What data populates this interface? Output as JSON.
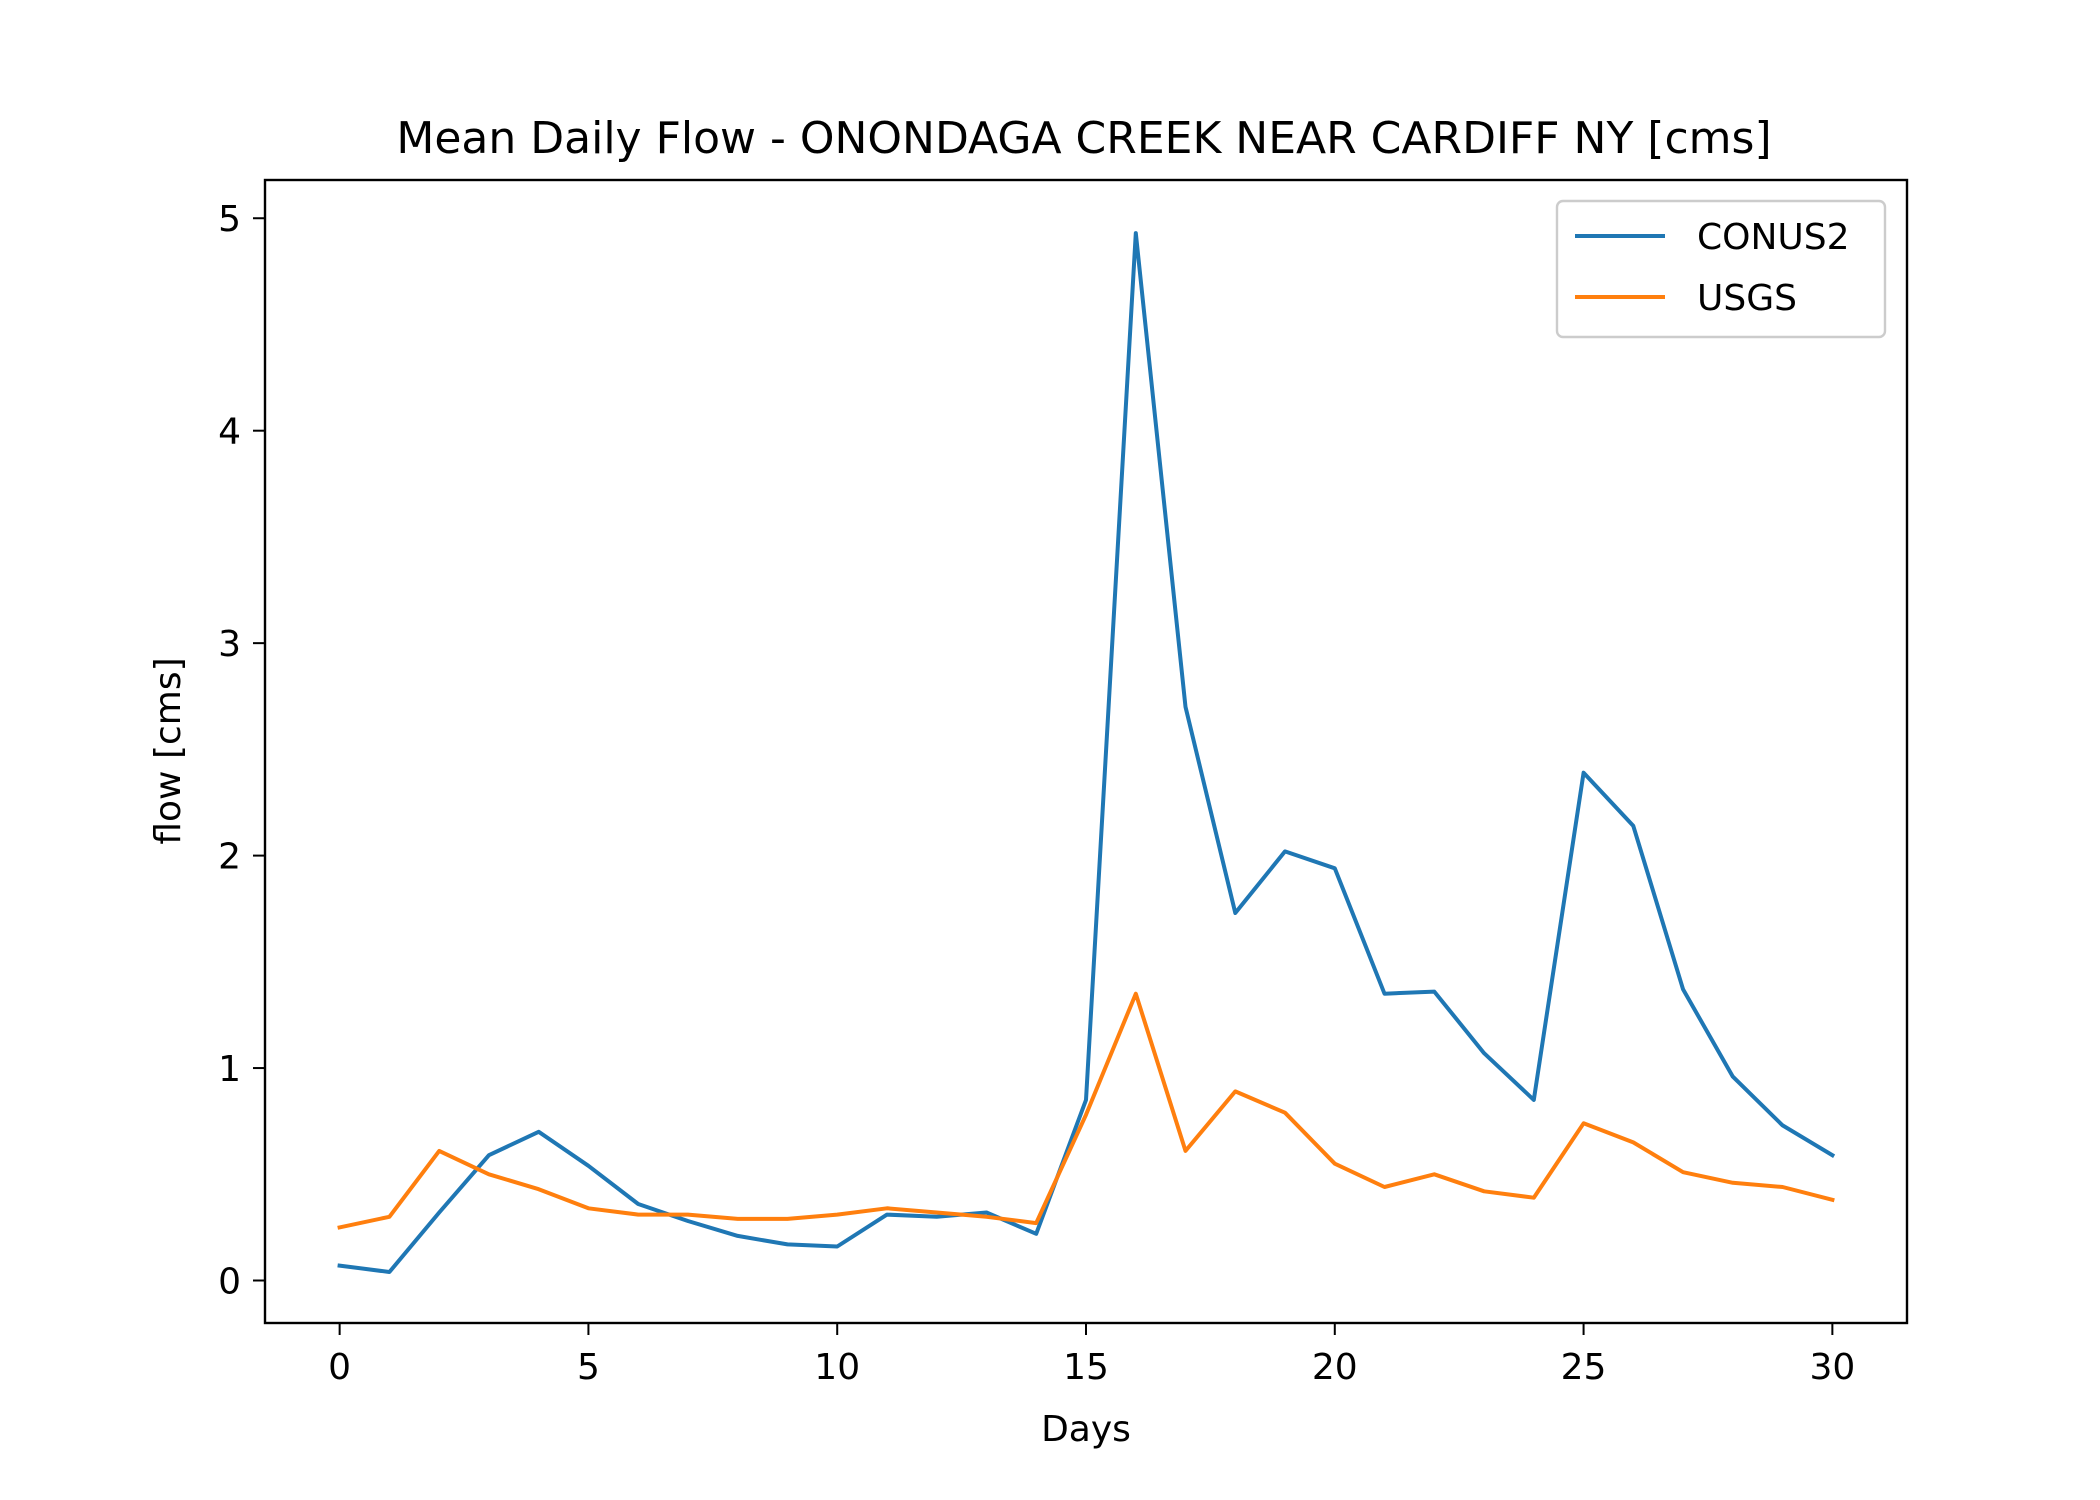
{
  "chart_data": {
    "type": "line",
    "title": "Mean Daily Flow - ONONDAGA CREEK NEAR CARDIFF NY [cms]",
    "xlabel": "Days",
    "ylabel": "flow [cms]",
    "xlim": [
      -1.5,
      31.5
    ],
    "ylim": [
      -0.2,
      5.18
    ],
    "xticks": [
      0,
      5,
      10,
      15,
      20,
      25,
      30
    ],
    "yticks": [
      0,
      1,
      2,
      3,
      4,
      5
    ],
    "grid": false,
    "legend": "top-right",
    "x": [
      0,
      1,
      2,
      3,
      4,
      5,
      6,
      7,
      8,
      9,
      10,
      11,
      12,
      13,
      14,
      15,
      16,
      17,
      18,
      19,
      20,
      21,
      22,
      23,
      24,
      25,
      26,
      27,
      28,
      29,
      30
    ],
    "series": [
      {
        "name": "CONUS2",
        "color": "#1f77b4",
        "values": [
          0.07,
          0.04,
          0.32,
          0.59,
          0.7,
          0.54,
          0.36,
          0.28,
          0.21,
          0.17,
          0.16,
          0.31,
          0.3,
          0.32,
          0.22,
          0.85,
          4.93,
          2.7,
          1.73,
          2.02,
          1.94,
          1.35,
          1.36,
          1.07,
          0.85,
          2.39,
          2.14,
          1.37,
          0.96,
          0.73,
          0.59
        ]
      },
      {
        "name": "USGS",
        "color": "#ff7f0e",
        "values": [
          0.25,
          0.3,
          0.61,
          0.5,
          0.43,
          0.34,
          0.31,
          0.31,
          0.29,
          0.29,
          0.31,
          0.34,
          0.32,
          0.3,
          0.27,
          0.78,
          1.35,
          0.61,
          0.89,
          0.79,
          0.55,
          0.44,
          0.5,
          0.42,
          0.39,
          0.74,
          0.65,
          0.51,
          0.46,
          0.44,
          0.38
        ]
      }
    ]
  }
}
